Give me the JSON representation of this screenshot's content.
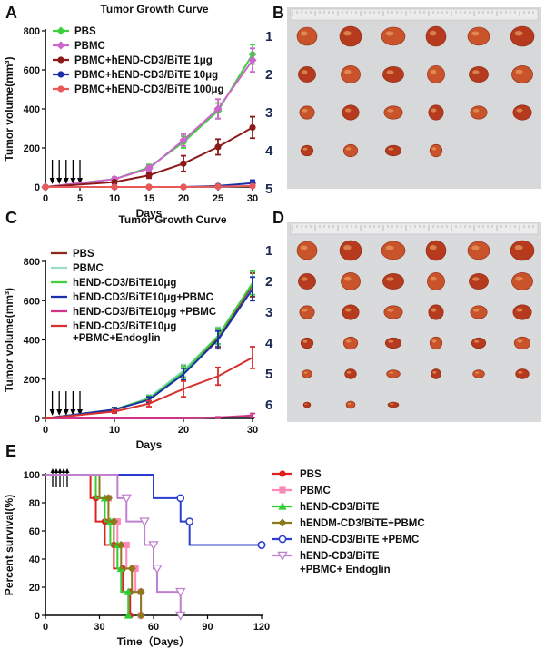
{
  "panel_letters": [
    "A",
    "B",
    "C",
    "D",
    "E"
  ],
  "photo_B": {
    "rows": [
      "1",
      "2",
      "3",
      "4",
      "5"
    ],
    "counts": [
      6,
      6,
      6,
      4,
      0
    ]
  },
  "photo_D": {
    "rows": [
      "1",
      "2",
      "3",
      "4",
      "5",
      "6"
    ],
    "counts": [
      6,
      6,
      6,
      6,
      6,
      3
    ]
  },
  "arrow_days": [
    1,
    2,
    3,
    4,
    5
  ],
  "chart_data": [
    {
      "id": "A",
      "type": "line",
      "title": "Tumor Growth Curve",
      "xlabel": "Days",
      "ylabel": "Tumor volume(mm³)",
      "x": [
        0,
        10,
        15,
        20,
        25,
        30
      ],
      "xticks": [
        0,
        5,
        10,
        15,
        20,
        25,
        30
      ],
      "yticks": [
        0,
        200,
        400,
        600,
        800
      ],
      "xlim": [
        0,
        30
      ],
      "ylim": [
        0,
        800
      ],
      "legend_position": "top-left",
      "series": [
        {
          "name": "PBS",
          "color": "#3dd13d",
          "marker": "diamond",
          "values": [
            0,
            40,
            100,
            230,
            390,
            680
          ],
          "errors": [
            0,
            10,
            15,
            30,
            40,
            50
          ]
        },
        {
          "name": "PBMC",
          "color": "#cc66cc",
          "marker": "diamond",
          "values": [
            0,
            40,
            95,
            240,
            400,
            650
          ],
          "errors": [
            0,
            10,
            15,
            30,
            50,
            60
          ]
        },
        {
          "name": "PBMC+hEND-CD3/BiTE 1μg",
          "color": "#8b1a1a",
          "marker": "circle",
          "values": [
            0,
            25,
            60,
            120,
            205,
            305
          ],
          "errors": [
            0,
            8,
            15,
            40,
            40,
            55
          ]
        },
        {
          "name": "PBMC+hEND-CD3/BiTE 10μg",
          "color": "#1a2fa8",
          "marker": "circle",
          "values": [
            0,
            0,
            0,
            0,
            5,
            20
          ],
          "errors": [
            0,
            0,
            0,
            0,
            3,
            15
          ]
        },
        {
          "name": "PBMC+hEND-CD3/BiTE 100μg",
          "color": "#e85a5a",
          "marker": "circle",
          "values": [
            0,
            0,
            0,
            0,
            2,
            5
          ],
          "errors": [
            0,
            0,
            0,
            0,
            2,
            3
          ]
        }
      ]
    },
    {
      "id": "C",
      "type": "line",
      "title": "Tumor Growth Curve",
      "xlabel": "Days",
      "ylabel": "Tumor volume(mm³)",
      "x": [
        0,
        10,
        15,
        20,
        25,
        30
      ],
      "xticks": [
        0,
        10,
        20,
        30
      ],
      "yticks": [
        0,
        200,
        400,
        600,
        800
      ],
      "xlim": [
        0,
        30
      ],
      "ylim": [
        0,
        800
      ],
      "legend_position": "top-left",
      "series": [
        {
          "name": "PBS",
          "color": "#8b2a1a",
          "marker": "none",
          "values": [
            0,
            45,
            100,
            240,
            410,
            680
          ],
          "errors": [
            0,
            10,
            15,
            30,
            45,
            60
          ]
        },
        {
          "name": "PBMC",
          "color": "#99ddcc",
          "marker": "none",
          "values": [
            0,
            45,
            105,
            245,
            420,
            690
          ],
          "errors": [
            0,
            10,
            15,
            30,
            45,
            60
          ]
        },
        {
          "name": "hEND-CD3/BiTE10μg",
          "color": "#3dd13d",
          "marker": "none",
          "values": [
            0,
            45,
            100,
            235,
            420,
            690
          ],
          "errors": [
            0,
            10,
            15,
            30,
            40,
            60
          ]
        },
        {
          "name": "hEND-CD3/BiTE10μg+PBMC",
          "color": "#1a2fa8",
          "marker": "none",
          "values": [
            0,
            45,
            95,
            225,
            400,
            660
          ],
          "errors": [
            0,
            10,
            15,
            30,
            45,
            60
          ]
        },
        {
          "name": "hEND-CD3/BiTE10μg +PBMC",
          "color": "#d0338a",
          "marker": "none",
          "values": [
            0,
            0,
            0,
            0,
            5,
            15
          ],
          "errors": [
            0,
            0,
            0,
            0,
            3,
            10
          ]
        },
        {
          "name": "hEND-CD3/BiTE10μg\n+PBMC+Endoglin",
          "color": "#d93030",
          "marker": "none",
          "values": [
            0,
            35,
            75,
            150,
            215,
            310
          ],
          "errors": [
            0,
            8,
            15,
            40,
            45,
            55
          ]
        }
      ]
    },
    {
      "id": "E",
      "type": "line",
      "title": "",
      "xlabel": "Time（Days）",
      "ylabel": "Percent survival(%)",
      "xticks": [
        0,
        30,
        60,
        90,
        120
      ],
      "yticks": [
        0,
        20,
        40,
        60,
        80,
        100
      ],
      "xlim": [
        0,
        120
      ],
      "ylim": [
        0,
        100
      ],
      "legend_position": "right",
      "series": [
        {
          "name": "PBS",
          "color": "#e02020",
          "marker": "circle",
          "steps": [
            [
              0,
              100
            ],
            [
              25,
              100
            ],
            [
              25,
              83.3
            ],
            [
              28,
              83.3
            ],
            [
              28,
              66.7
            ],
            [
              33,
              66.7
            ],
            [
              33,
              50
            ],
            [
              38,
              50
            ],
            [
              38,
              33.3
            ],
            [
              43,
              33.3
            ],
            [
              43,
              16.7
            ],
            [
              47,
              16.7
            ],
            [
              47,
              0
            ]
          ]
        },
        {
          "name": "PBMC",
          "color": "#ff88bb",
          "marker": "square",
          "steps": [
            [
              0,
              100
            ],
            [
              30,
              100
            ],
            [
              30,
              83.3
            ],
            [
              35,
              83.3
            ],
            [
              35,
              66.7
            ],
            [
              40,
              66.7
            ],
            [
              40,
              50
            ],
            [
              45,
              50
            ],
            [
              45,
              33.3
            ],
            [
              50,
              33.3
            ],
            [
              50,
              16.7
            ],
            [
              53,
              16.7
            ],
            [
              53,
              0
            ]
          ]
        },
        {
          "name": "hEND-CD3/BiTE",
          "color": "#33cc33",
          "marker": "triangle",
          "steps": [
            [
              0,
              100
            ],
            [
              28,
              100
            ],
            [
              28,
              83.3
            ],
            [
              33,
              83.3
            ],
            [
              33,
              66.7
            ],
            [
              36,
              66.7
            ],
            [
              36,
              50
            ],
            [
              40,
              50
            ],
            [
              40,
              33.3
            ],
            [
              42,
              33.3
            ],
            [
              42,
              16.7
            ],
            [
              46,
              16.7
            ],
            [
              46,
              0
            ]
          ]
        },
        {
          "name": "hENDM-CD3/BiTE+PBMC",
          "color": "#8c7a1a",
          "marker": "diamond",
          "steps": [
            [
              0,
              100
            ],
            [
              30,
              100
            ],
            [
              30,
              83.3
            ],
            [
              35,
              83.3
            ],
            [
              35,
              66.7
            ],
            [
              38,
              66.7
            ],
            [
              38,
              50
            ],
            [
              42,
              50
            ],
            [
              42,
              33.3
            ],
            [
              48,
              33.3
            ],
            [
              48,
              16.7
            ],
            [
              53,
              16.7
            ],
            [
              53,
              0
            ]
          ]
        },
        {
          "name": "hEND-CD3/BiTE +PBMC",
          "color": "#2a3fd0",
          "marker": "circle-open",
          "steps": [
            [
              0,
              100
            ],
            [
              60,
              100
            ],
            [
              60,
              83.3
            ],
            [
              75,
              83.3
            ],
            [
              75,
              66.7
            ],
            [
              80,
              66.7
            ],
            [
              80,
              50
            ],
            [
              120,
              50
            ]
          ]
        },
        {
          "name": "hEND-CD3/BiTE\n+PBMC+ Endoglin",
          "color": "#c080d0",
          "marker": "triangle-down",
          "steps": [
            [
              0,
              100
            ],
            [
              40,
              100
            ],
            [
              40,
              83.3
            ],
            [
              45,
              83.3
            ],
            [
              45,
              66.7
            ],
            [
              55,
              66.7
            ],
            [
              55,
              50
            ],
            [
              60,
              50
            ],
            [
              60,
              33.3
            ],
            [
              62,
              33.3
            ],
            [
              62,
              16.7
            ],
            [
              75,
              16.7
            ],
            [
              75,
              0
            ]
          ]
        }
      ]
    }
  ]
}
